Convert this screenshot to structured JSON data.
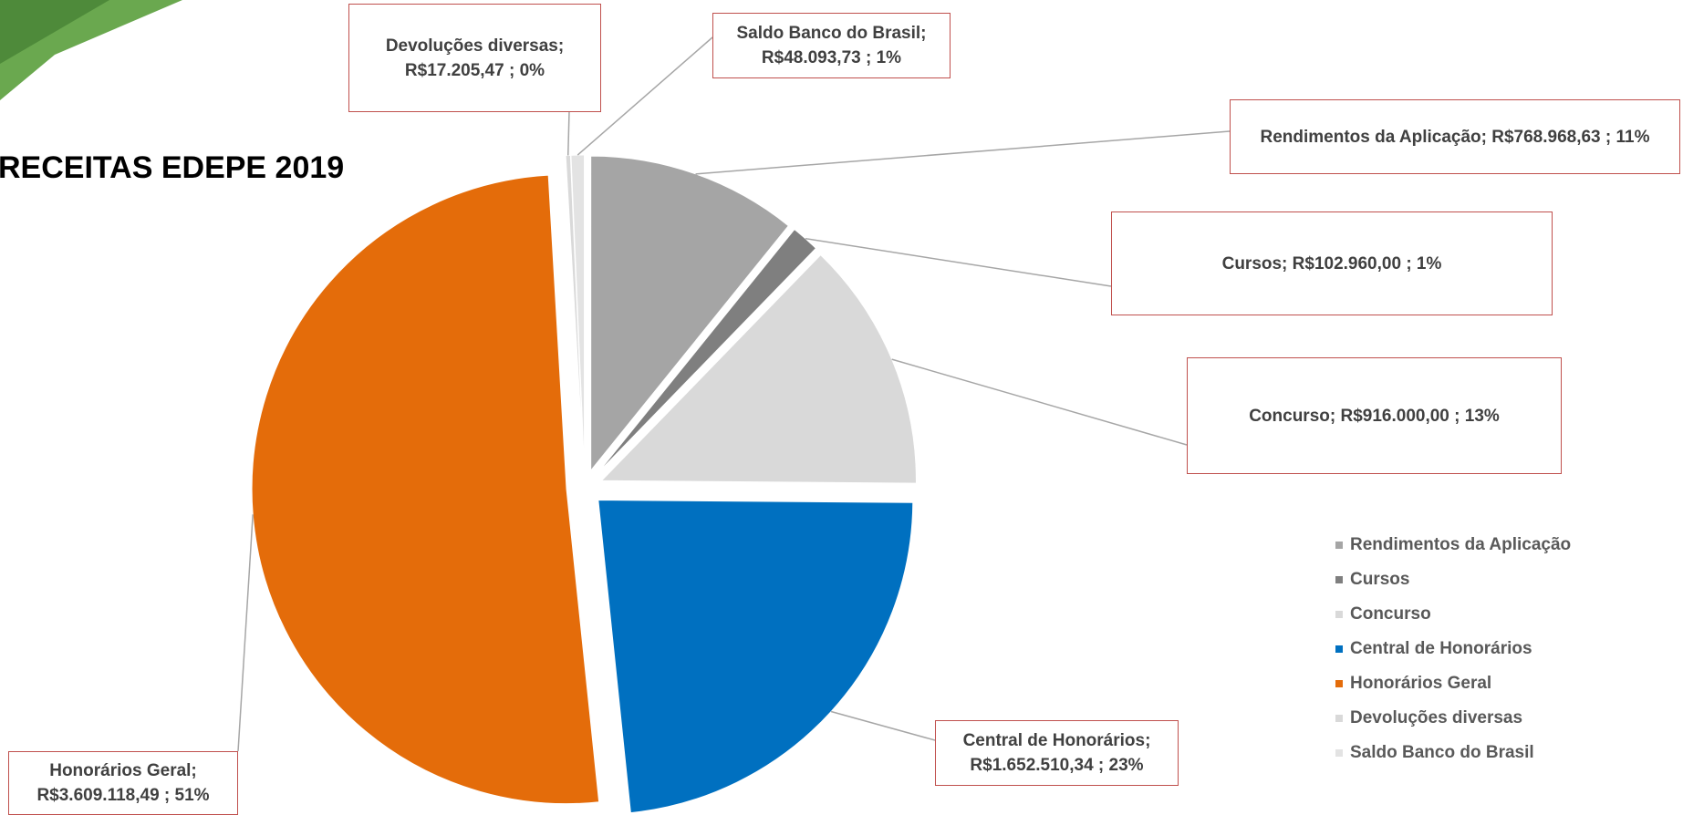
{
  "chart_data": {
    "type": "pie",
    "title": "RECEITAS EDEPE 2019",
    "categories": [
      "Rendimentos da Aplicação",
      "Cursos",
      "Concurso",
      "Central de Honorários",
      "Honorários Geral",
      "Devoluções diversas",
      "Saldo Banco do Brasil"
    ],
    "values": [
      768968.63,
      102960,
      916000,
      1652510.34,
      3609118.49,
      17205.47,
      48093.73
    ],
    "value_labels": [
      "Rendimentos da Aplicação;  R$768.968,63 ; 11%",
      "Cursos;  R$102.960,00 ; 1%",
      "Concurso;  R$916.000,00 ; 13%",
      "Central de Honorários; R$1.652.510,34 ; 23%",
      "Honorários Geral; R$3.609.118,49 ; 51%",
      "Devoluções diversas; R$17.205,47 ; 0%",
      "Saldo Banco do Brasil; R$48.093,73 ; 1%"
    ],
    "colors": [
      "#a5a5a5",
      "#7f7f7f",
      "#d9d9d9",
      "#0070c0",
      "#e46c0a",
      "#d9d9d9",
      "#e3e3e3"
    ],
    "legend": "right"
  }
}
